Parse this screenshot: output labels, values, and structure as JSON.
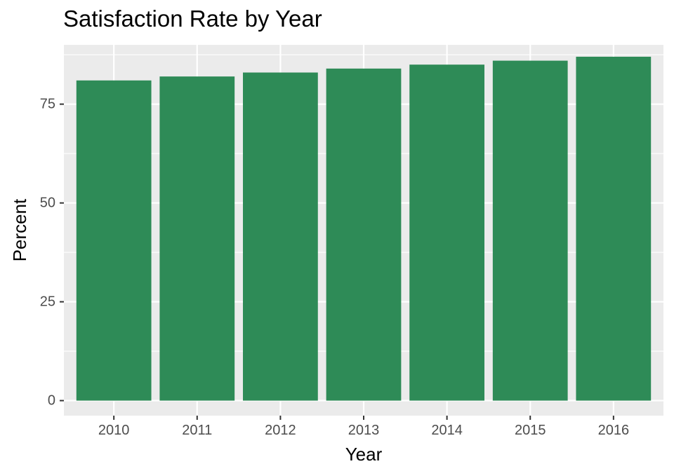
{
  "chart_data": {
    "type": "bar",
    "title": "Satisfaction Rate by Year",
    "xlabel": "Year",
    "ylabel": "Percent",
    "categories": [
      "2010",
      "2011",
      "2012",
      "2013",
      "2014",
      "2015",
      "2016"
    ],
    "values": [
      81,
      82,
      83,
      84,
      85,
      86,
      87
    ],
    "ylim": [
      -3.8,
      90
    ],
    "yticks": [
      0,
      25,
      50,
      75
    ],
    "ytick_labels": [
      "0",
      "25",
      "50",
      "75"
    ],
    "grid": true,
    "legend": "none",
    "colors": {
      "bar": "#2e8b57",
      "panel_background": "#ebebeb",
      "grid": "#ffffff",
      "tick_text": "#4d4d4d",
      "tick_mark": "#333333",
      "text": "#000000"
    }
  }
}
